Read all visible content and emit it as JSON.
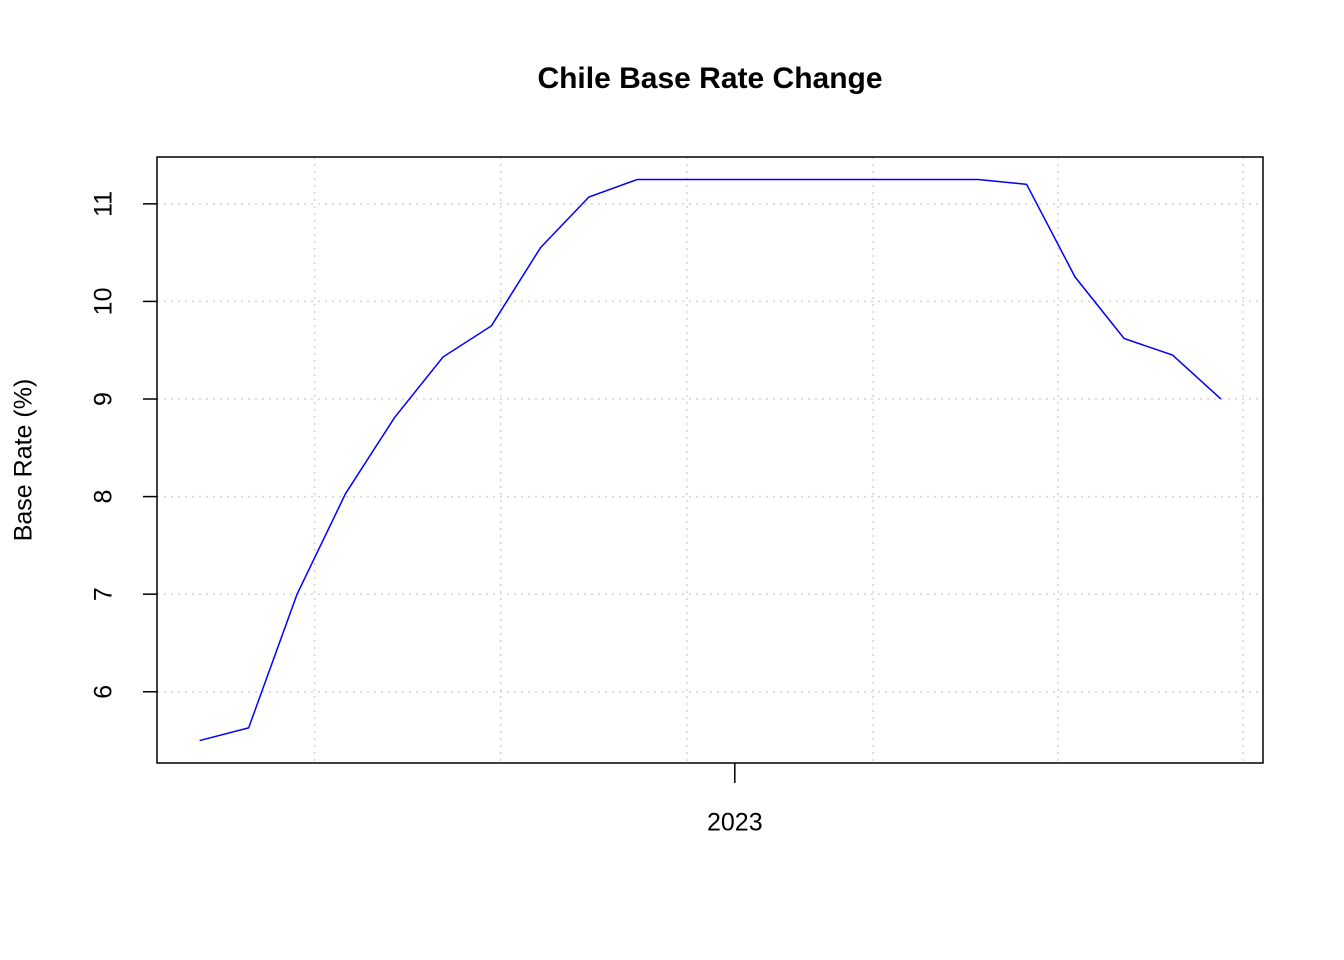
{
  "chart_data": {
    "type": "line",
    "title": "Chile Base Rate Change",
    "y_label": "Base Rate (%)",
    "x": [
      2022.083,
      2022.167,
      2022.25,
      2022.333,
      2022.417,
      2022.5,
      2022.583,
      2022.667,
      2022.75,
      2022.833,
      2022.917,
      2023,
      2023.083,
      2023.167,
      2023.25,
      2023.333,
      2023.417,
      2023.5,
      2023.583,
      2023.667,
      2023.75,
      2023.833
    ],
    "series": [
      {
        "color": "#0000ff",
        "values": [
          5.5,
          5.63,
          7.0,
          8.03,
          8.81,
          9.43,
          9.75,
          10.55,
          11.07,
          11.25,
          11.25,
          11.25,
          11.25,
          11.25,
          11.25,
          11.25,
          11.25,
          11.2,
          10.25,
          9.62,
          9.45,
          9.0
        ]
      }
    ],
    "xlim": [
      2022.01,
      2023.905
    ],
    "xticks": [
      2023
    ],
    "xgrid": [
      2022.28,
      2022.599,
      2022.918,
      2023.237,
      2023.554,
      2023.871
    ],
    "ylim": [
      5.27,
      11.48
    ],
    "yticks": [
      6,
      7,
      8,
      9,
      10,
      11
    ],
    "grid": true
  }
}
